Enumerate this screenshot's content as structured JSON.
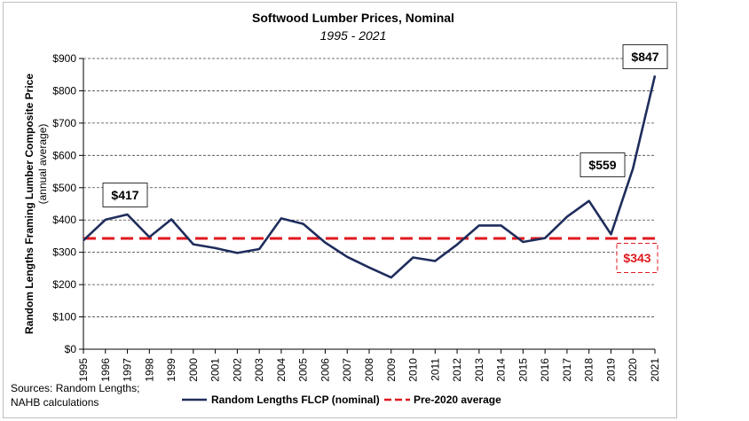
{
  "chart_data": {
    "type": "line",
    "title": "Softwood Lumber Prices, Nominal",
    "subtitle": "1995 - 2021",
    "ylabel": "Random Lengths Framing Lumber Composite Price",
    "ylabel_sub": "(annual average)",
    "ylim": [
      0,
      900
    ],
    "y_ticks": [
      "$0",
      "$100",
      "$200",
      "$300",
      "$400",
      "$500",
      "$600",
      "$700",
      "$800",
      "$900"
    ],
    "y_tick_values": [
      0,
      100,
      200,
      300,
      400,
      500,
      600,
      700,
      800,
      900
    ],
    "grid": "horizontal dashed",
    "x": [
      "1995",
      "1996",
      "1997",
      "1998",
      "1999",
      "2000",
      "2001",
      "2002",
      "2003",
      "2004",
      "2005",
      "2006",
      "2007",
      "2008",
      "2009",
      "2010",
      "2011",
      "2012",
      "2013",
      "2014",
      "2015",
      "2016",
      "2017",
      "2018",
      "2019",
      "2020",
      "2021"
    ],
    "series": [
      {
        "name": "Random Lengths FLCP (nominal)",
        "color": "#1f2d5c",
        "values": [
          337,
          401,
          417,
          347,
          402,
          325,
          313,
          298,
          310,
          405,
          388,
          330,
          286,
          253,
          222,
          284,
          273,
          324,
          383,
          383,
          332,
          344,
          410,
          459,
          356,
          559,
          847
        ]
      }
    ],
    "reference_line": {
      "name": "Pre-2020 average",
      "value": 343,
      "color": "#e0191f",
      "style": "dashed"
    },
    "annotations": [
      {
        "text": "$417",
        "year": "1997"
      },
      {
        "text": "$559",
        "year": "2020"
      },
      {
        "text": "$847",
        "year": "2021"
      },
      {
        "text": "$343",
        "year": "2021",
        "color": "#e0191f"
      }
    ],
    "legend": [
      "Random Lengths FLCP (nominal)",
      "Pre-2020 average"
    ],
    "legend_position": "bottom"
  },
  "source_note": [
    "Sources: Random Lengths;",
    "NAHB calculations"
  ]
}
